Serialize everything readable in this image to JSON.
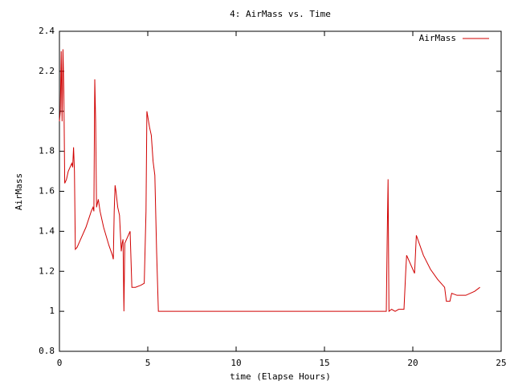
{
  "chart_data": {
    "type": "line",
    "title": "4: AirMass vs. Time",
    "x_label": "time (Elapse Hours)",
    "y_label": "AirMass",
    "x": [
      0,
      0.05,
      0.1,
      0.15,
      0.2,
      0.25,
      0.3,
      0.4,
      0.5,
      0.6,
      0.7,
      0.75,
      0.8,
      0.85,
      0.9,
      1.0,
      1.2,
      1.5,
      1.8,
      1.9,
      1.95,
      2.0,
      2.05,
      2.1,
      2.2,
      2.3,
      2.5,
      2.8,
      3.0,
      3.05,
      3.1,
      3.15,
      3.2,
      3.3,
      3.4,
      3.5,
      3.55,
      3.6,
      3.65,
      3.7,
      3.8,
      4.0,
      4.1,
      4.3,
      4.6,
      4.8,
      4.9,
      4.95,
      5.1,
      5.2,
      5.3,
      5.4,
      5.5,
      5.6,
      18.4,
      18.5,
      18.55,
      18.6,
      18.65,
      18.8,
      19.0,
      19.2,
      19.4,
      19.5,
      19.6,
      19.65,
      19.8,
      20.1,
      20.2,
      20.4,
      20.6,
      21.0,
      21.4,
      21.8,
      21.9,
      22.1,
      22.2,
      22.5,
      23.0,
      23.5,
      23.8
    ],
    "series": [
      {
        "name": "AirMass",
        "color": "#d00000",
        "values": [
          1.95,
          2.0,
          2.3,
          1.95,
          2.31,
          2.1,
          1.64,
          1.66,
          1.7,
          1.72,
          1.74,
          1.72,
          1.82,
          1.7,
          1.31,
          1.32,
          1.36,
          1.42,
          1.5,
          1.52,
          1.5,
          2.16,
          1.95,
          1.52,
          1.56,
          1.5,
          1.42,
          1.33,
          1.28,
          1.26,
          1.5,
          1.63,
          1.6,
          1.52,
          1.48,
          1.3,
          1.34,
          1.36,
          1.0,
          1.34,
          1.36,
          1.4,
          1.12,
          1.12,
          1.13,
          1.14,
          1.5,
          2.0,
          1.92,
          1.88,
          1.75,
          1.68,
          1.3,
          1.0,
          1.0,
          1.0,
          1.36,
          1.66,
          1.0,
          1.01,
          1.0,
          1.01,
          1.01,
          1.01,
          1.2,
          1.28,
          1.25,
          1.19,
          1.38,
          1.33,
          1.28,
          1.21,
          1.16,
          1.12,
          1.05,
          1.05,
          1.09,
          1.08,
          1.08,
          1.1,
          1.12
        ]
      }
    ],
    "xlim": [
      0,
      25
    ],
    "xticks": [
      0,
      5,
      10,
      15,
      20,
      25
    ],
    "ylim": [
      0.8,
      2.4
    ],
    "yticks": [
      0.8,
      1,
      1.2,
      1.4,
      1.6,
      1.8,
      2,
      2.2,
      2.4
    ],
    "grid": false,
    "legend": "top-right"
  }
}
